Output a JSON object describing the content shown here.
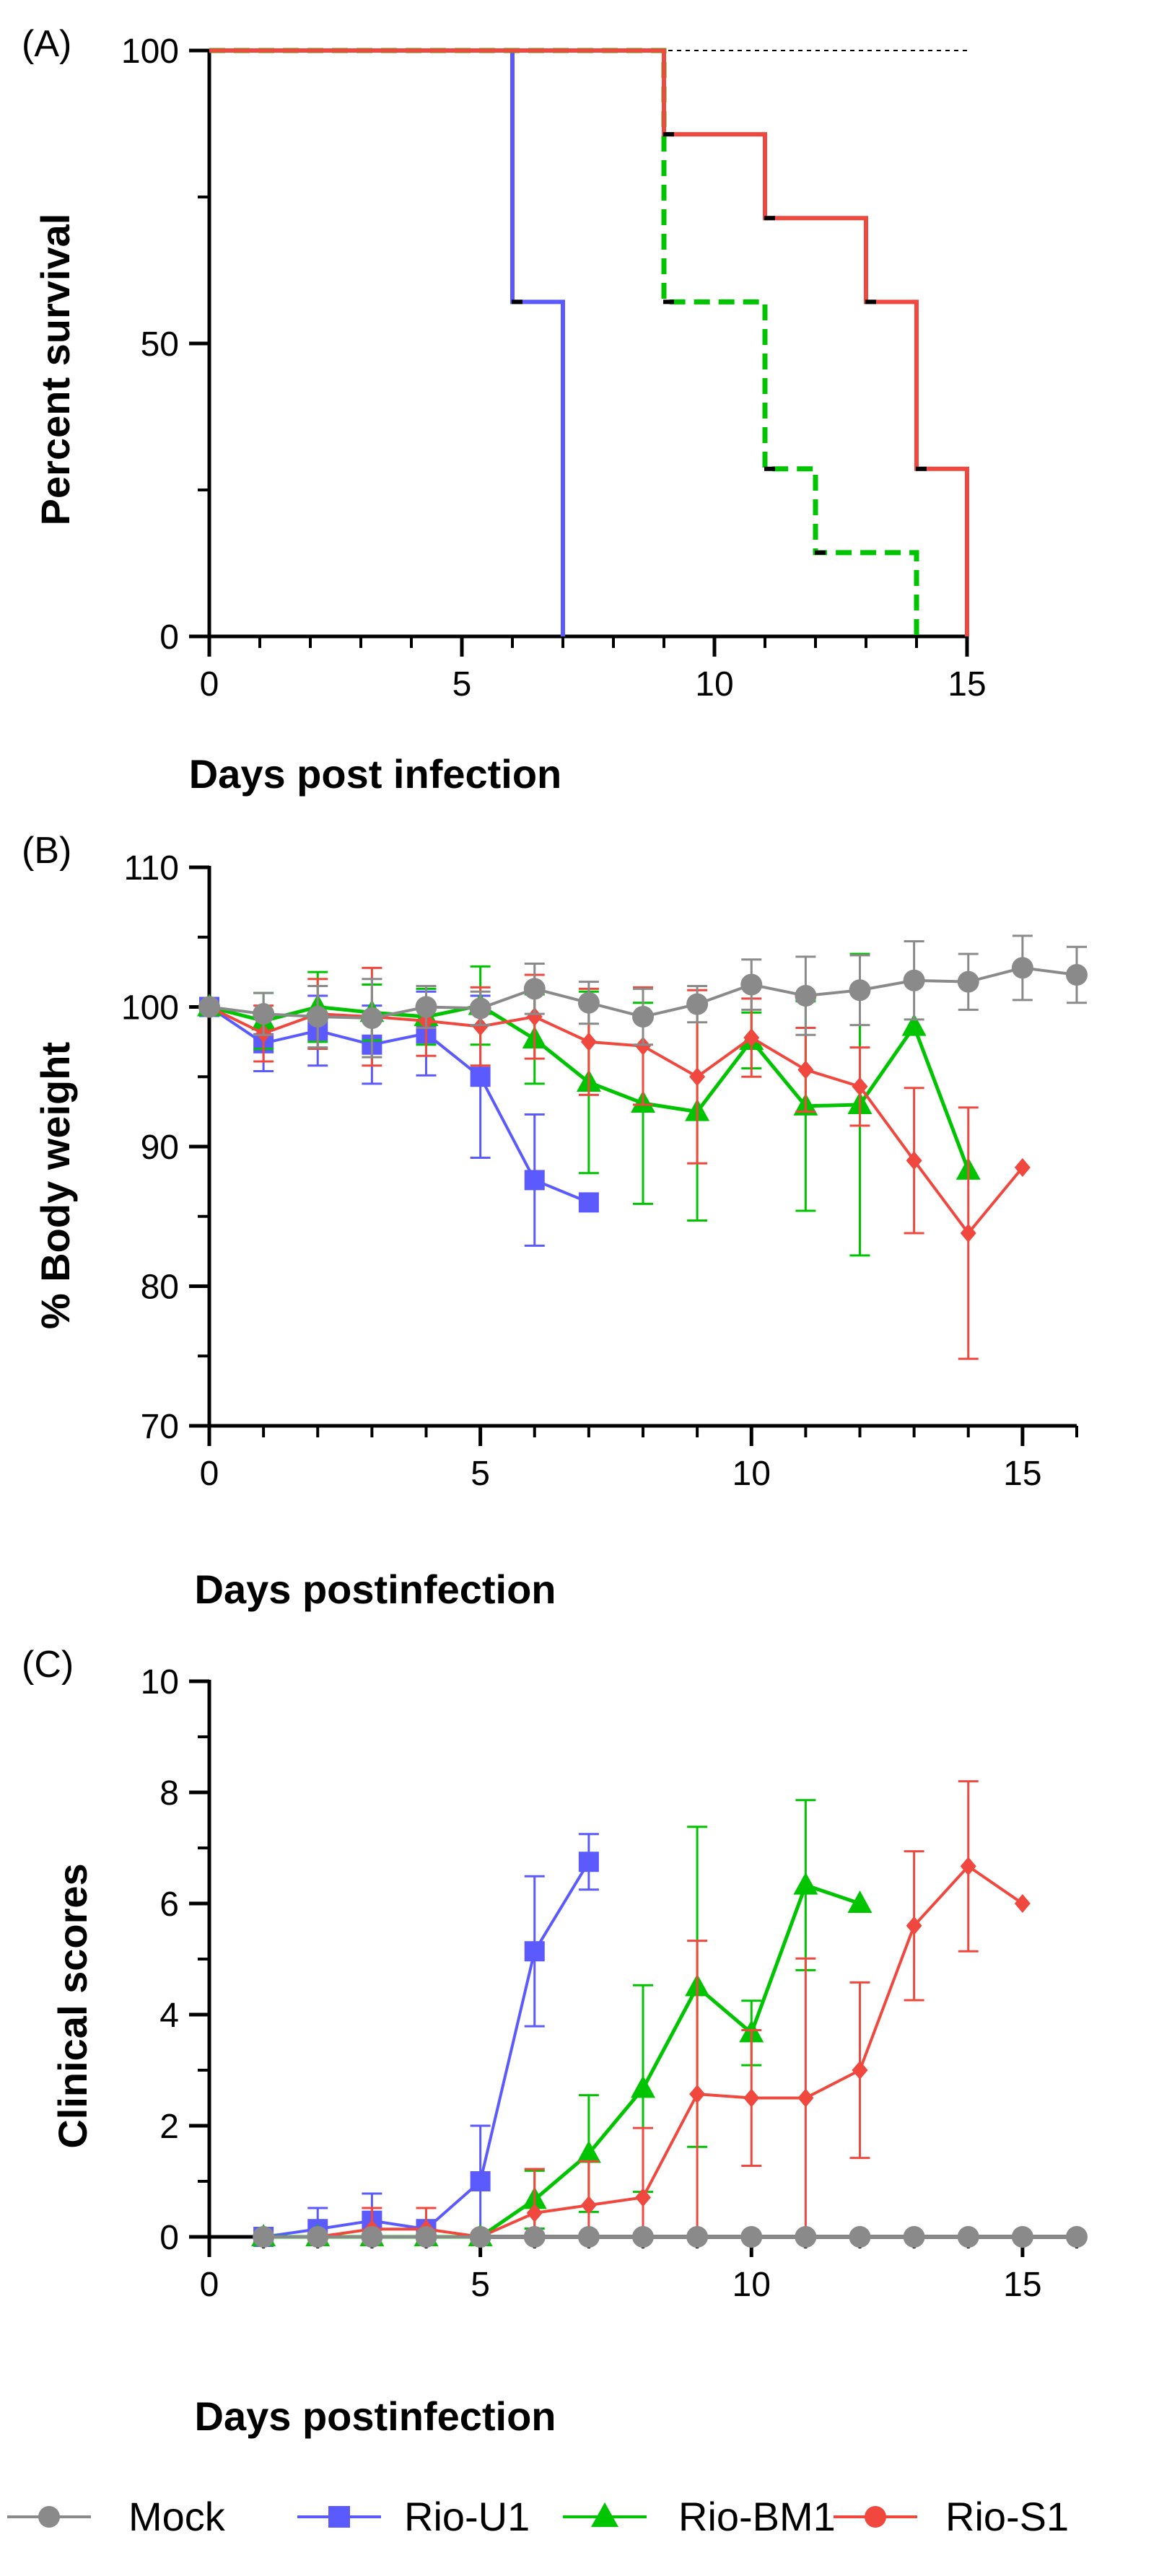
{
  "colors": {
    "mock": "#8a8a8a",
    "rio_u1": "#5a5aff",
    "rio_bm1": "#00c400",
    "rio_s1": "#f0483e",
    "reference_line": "#000000"
  },
  "legend": {
    "mock": "Mock",
    "rio_u1": "Rio-U1",
    "rio_bm1": "Rio-BM1",
    "rio_s1": "Rio-S1"
  },
  "chart_data": [
    {
      "type": "line",
      "panel_label": "(A)",
      "xlabel": "Days post infection",
      "ylabel": "Percent survival",
      "xlim": [
        0,
        15
      ],
      "ylim": [
        0,
        100
      ],
      "xticks": [
        0,
        5,
        10,
        15
      ],
      "yticks": [
        0,
        50,
        100
      ],
      "step": true,
      "grid": false,
      "series": [
        {
          "key": "mock",
          "style": "dotted",
          "x": [
            0,
            15
          ],
          "y": [
            100,
            100
          ]
        },
        {
          "key": "rio_u1",
          "style": "solid",
          "x": [
            0,
            6,
            7
          ],
          "y": [
            100,
            57.1,
            0
          ]
        },
        {
          "key": "rio_bm1",
          "style": "dashed",
          "x": [
            0,
            9,
            11,
            12,
            14
          ],
          "y": [
            100,
            57.1,
            28.6,
            14.3,
            0
          ]
        },
        {
          "key": "rio_s1",
          "style": "solid",
          "x": [
            0,
            9,
            11,
            13,
            14,
            15
          ],
          "y": [
            100,
            85.7,
            71.4,
            57.1,
            28.6,
            0
          ]
        }
      ]
    },
    {
      "type": "line",
      "panel_label": "(B)",
      "xlabel": "Days postinfection",
      "ylabel": "% Body weight",
      "xlim": [
        0,
        16
      ],
      "ylim": [
        70,
        110
      ],
      "xticks": [
        0,
        5,
        10,
        15
      ],
      "yticks": [
        70,
        80,
        90,
        100,
        110
      ],
      "grid": false,
      "series": [
        {
          "key": "mock",
          "marker": "circle",
          "x": [
            0,
            1,
            2,
            3,
            4,
            5,
            6,
            7,
            8,
            9,
            10,
            11,
            12,
            13,
            14,
            15,
            16
          ],
          "y": [
            100,
            99.5,
            99.3,
            99.2,
            100,
            99.9,
            101.3,
            100.3,
            99.3,
            100.2,
            101.6,
            100.8,
            101.2,
            101.9,
            101.8,
            102.8,
            102.3
          ],
          "err": [
            0,
            1.5,
            2.2,
            2.8,
            1.5,
            1.2,
            1.8,
            1.5,
            2.0,
            1.3,
            1.8,
            2.8,
            2.5,
            2.8,
            2.0,
            2.3,
            2.0
          ]
        },
        {
          "key": "rio_u1",
          "marker": "square",
          "x": [
            0,
            1,
            2,
            3,
            4,
            5,
            6,
            7
          ],
          "y": [
            100,
            97.4,
            98.3,
            97.3,
            98.1,
            95.0,
            87.6,
            86.0
          ],
          "err": [
            0,
            2.0,
            2.5,
            2.8,
            3.0,
            5.8,
            4.7,
            0
          ]
        },
        {
          "key": "rio_bm1",
          "marker": "triangle",
          "x": [
            0,
            1,
            2,
            3,
            4,
            5,
            6,
            7,
            8,
            9,
            10,
            11,
            12,
            13,
            14
          ],
          "y": [
            100,
            99.0,
            100.0,
            99.6,
            99.3,
            100.1,
            97.7,
            94.6,
            93.1,
            92.5,
            97.6,
            92.9,
            93.0,
            98.6,
            88.3
          ],
          "err": [
            0,
            2.0,
            2.5,
            2.0,
            2.0,
            2.8,
            3.2,
            6.5,
            7.2,
            7.8,
            2.0,
            7.5,
            10.8,
            0,
            0
          ]
        },
        {
          "key": "rio_s1",
          "marker": "diamond",
          "x": [
            0,
            1,
            2,
            3,
            4,
            5,
            6,
            7,
            8,
            9,
            10,
            11,
            12,
            13,
            14,
            15
          ],
          "y": [
            100,
            98.1,
            99.5,
            99.3,
            99.0,
            98.6,
            99.3,
            97.5,
            97.2,
            95.0,
            97.8,
            95.5,
            94.3,
            89.0,
            83.8,
            88.5
          ],
          "err": [
            0,
            2.0,
            2.5,
            3.5,
            2.5,
            2.8,
            3.0,
            3.8,
            4.2,
            6.2,
            2.8,
            3.0,
            2.8,
            5.2,
            9.0,
            0
          ]
        }
      ]
    },
    {
      "type": "line",
      "panel_label": "(C)",
      "xlabel": "Days postinfection",
      "ylabel": "Clinical scores",
      "xlim": [
        0,
        16
      ],
      "ylim": [
        0,
        10
      ],
      "xticks": [
        0,
        5,
        10,
        15
      ],
      "yticks": [
        0,
        2,
        4,
        6,
        8,
        10
      ],
      "grid": false,
      "series": [
        {
          "key": "mock",
          "marker": "circle",
          "x": [
            1,
            2,
            3,
            4,
            5,
            6,
            7,
            8,
            9,
            10,
            11,
            12,
            13,
            14,
            15,
            16
          ],
          "y": [
            0,
            0,
            0,
            0,
            0,
            0,
            0,
            0,
            0,
            0,
            0,
            0,
            0,
            0,
            0,
            0
          ],
          "err": [
            0,
            0,
            0,
            0,
            0,
            0,
            0,
            0,
            0,
            0,
            0,
            0,
            0,
            0,
            0,
            0
          ]
        },
        {
          "key": "rio_u1",
          "marker": "square",
          "x": [
            1,
            2,
            3,
            4,
            5,
            6,
            7
          ],
          "y": [
            0,
            0.14,
            0.29,
            0.14,
            1.0,
            5.14,
            6.75
          ],
          "err": [
            0,
            0.38,
            0.49,
            0.38,
            1.0,
            1.35,
            0.5
          ]
        },
        {
          "key": "rio_bm1",
          "marker": "triangle",
          "x": [
            1,
            2,
            3,
            4,
            5,
            6,
            7,
            8,
            9,
            10,
            11,
            12
          ],
          "y": [
            0,
            0,
            0,
            0,
            0,
            0.67,
            1.5,
            2.67,
            4.5,
            3.67,
            6.33,
            6.0
          ],
          "err": [
            0,
            0,
            0,
            0,
            0,
            0.52,
            1.05,
            1.86,
            2.88,
            0.58,
            1.53,
            0
          ]
        },
        {
          "key": "rio_s1",
          "marker": "diamond",
          "x": [
            1,
            2,
            3,
            4,
            5,
            6,
            7,
            8,
            9,
            10,
            11,
            12,
            13,
            14,
            15
          ],
          "y": [
            0,
            0,
            0.14,
            0.14,
            0,
            0.43,
            0.57,
            0.71,
            2.57,
            2.5,
            2.5,
            3.0,
            5.6,
            6.67,
            6.0
          ],
          "err": [
            0,
            0,
            0.38,
            0.38,
            0,
            0.79,
            0.79,
            1.25,
            2.76,
            1.22,
            2.51,
            1.58,
            1.34,
            1.53,
            0
          ]
        }
      ]
    }
  ]
}
